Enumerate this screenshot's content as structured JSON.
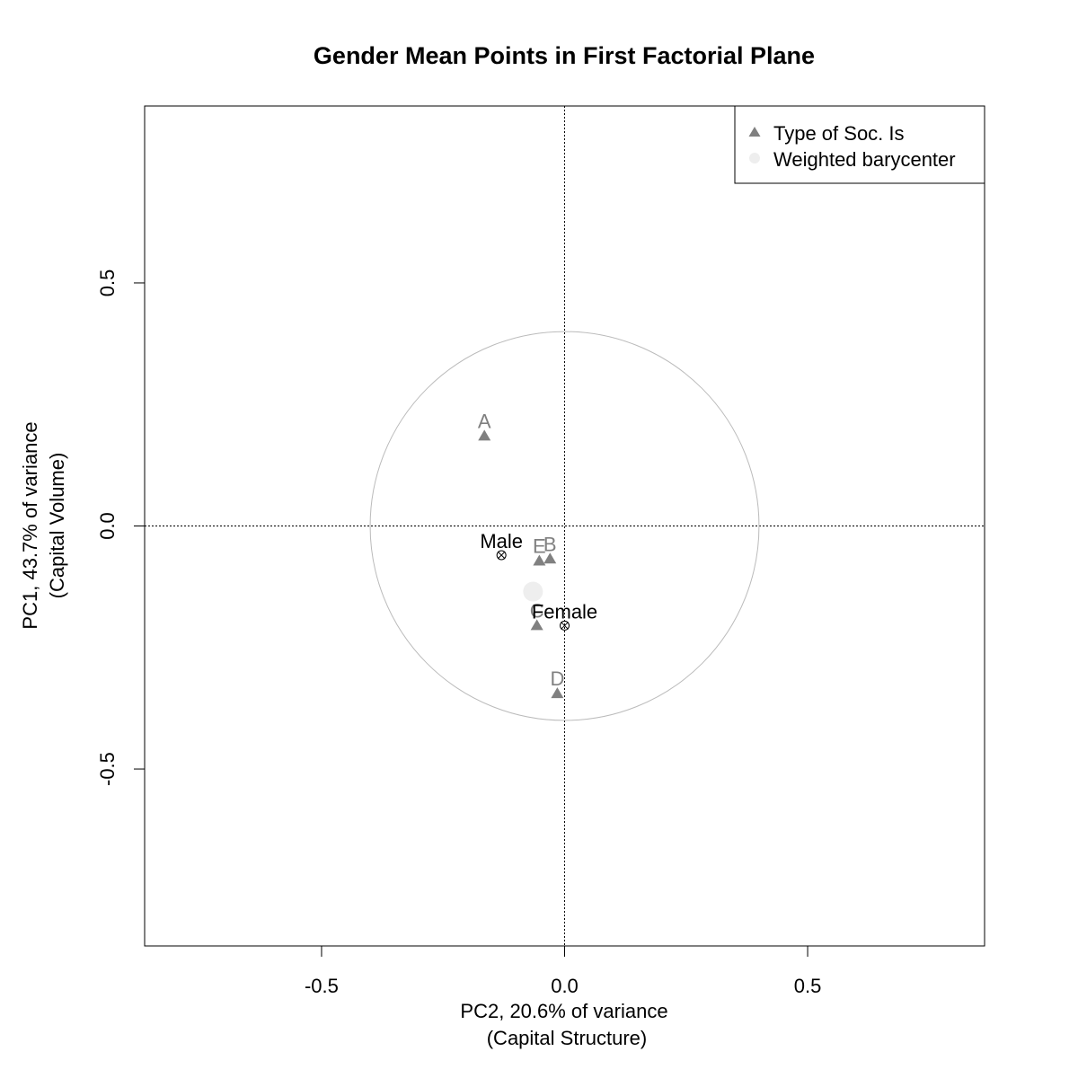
{
  "chart_data": {
    "type": "scatter",
    "title": "Gender Mean Points in First Factorial Plane",
    "xlabel": [
      "PC2, 20.6% of variance",
      "(Capital Structure)"
    ],
    "ylabel": [
      "PC1, 43.7% of variance",
      "(Capital Volume)"
    ],
    "xlim": [
      -0.864,
      0.864
    ],
    "ylim": [
      -0.864,
      0.864
    ],
    "x_ticks": [
      -0.5,
      0.0,
      0.5
    ],
    "y_ticks": [
      -0.5,
      0.0,
      0.5
    ],
    "x_tick_labels": [
      "-0.5",
      "0.0",
      "0.5"
    ],
    "y_tick_labels": [
      "-0.5",
      "0.0",
      "0.5"
    ],
    "reference_lines": {
      "x": 0,
      "y": 0,
      "style": "dotted"
    },
    "circle": {
      "center": [
        0.0,
        0.0
      ],
      "radius": 0.4
    },
    "legend_position": "top-right",
    "legend": [
      {
        "label": "Type of Soc. Is",
        "marker": "triangle",
        "color": "#808080"
      },
      {
        "label": "Weighted barycenter",
        "marker": "circle",
        "color": "#eeeeee"
      }
    ],
    "series": [
      {
        "name": "Type of Soc. Is",
        "marker": "triangle",
        "color": "#808080",
        "points": [
          {
            "label": "A",
            "x": -0.165,
            "y": 0.185
          },
          {
            "label": "B",
            "x": -0.03,
            "y": -0.068
          },
          {
            "label": "E",
            "x": -0.052,
            "y": -0.072
          },
          {
            "label": "C",
            "x": -0.057,
            "y": -0.205
          },
          {
            "label": "D",
            "x": -0.015,
            "y": -0.345
          }
        ]
      },
      {
        "name": "Gender",
        "marker": "circle-x",
        "color": "#000000",
        "points": [
          {
            "label": "Male",
            "x": -0.13,
            "y": -0.06
          },
          {
            "label": "Female",
            "x": 0.0,
            "y": -0.205
          }
        ]
      },
      {
        "name": "Weighted barycenter",
        "marker": "circle",
        "color": "#eeeeee",
        "points": [
          {
            "label": "",
            "x": -0.065,
            "y": -0.135
          }
        ]
      }
    ]
  }
}
